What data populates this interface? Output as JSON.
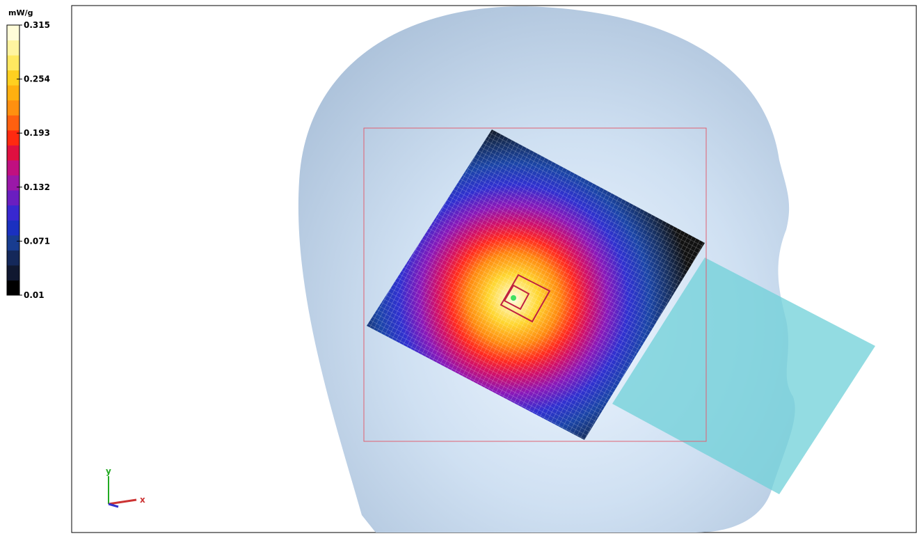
{
  "colorbar": {
    "unit": "mW/g",
    "lim": [
      0.01,
      0.315
    ],
    "ticks": [
      0.315,
      0.254,
      0.193,
      0.132,
      0.071,
      0.01
    ]
  },
  "axes_indicator": {
    "x": "x",
    "y": "y"
  }
}
